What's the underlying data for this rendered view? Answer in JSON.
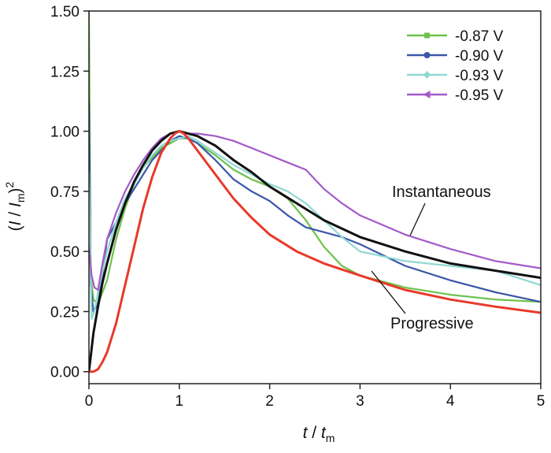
{
  "chart_data": {
    "type": "line",
    "xlabel": {
      "main": "t",
      "sep": " / ",
      "sub_main": "t",
      "sub": "m"
    },
    "ylabel": {
      "open": "(",
      "i": "I",
      "sep": " / ",
      "im": "I",
      "sub": "m",
      "close": ")",
      "sup": "2"
    },
    "xlim": [
      0,
      5
    ],
    "ylim": [
      -0.05,
      1.5
    ],
    "x_ticks": [
      0,
      1,
      2,
      3,
      4,
      5
    ],
    "x_tick_labels": [
      "0",
      "1",
      "2",
      "3",
      "4",
      "5"
    ],
    "y_ticks": [
      0,
      0.25,
      0.5,
      0.75,
      1.0,
      1.25,
      1.5
    ],
    "y_tick_labels": [
      "0.00",
      "0.25",
      "0.50",
      "0.75",
      "1.00",
      "1.25",
      "1.50"
    ],
    "grid": false,
    "legend_position": "top-right",
    "annotations": [
      {
        "text": "Instantaneous",
        "series": "instantaneous-theory"
      },
      {
        "text": "Progressive",
        "series": "progressive-theory"
      }
    ],
    "series": [
      {
        "name": "-0.87 V",
        "color": "#6cc24a",
        "marker": "square",
        "x": [
          0,
          0.02,
          0.05,
          0.1,
          0.2,
          0.3,
          0.4,
          0.5,
          0.6,
          0.7,
          0.8,
          0.9,
          1.0,
          1.1,
          1.2,
          1.4,
          1.6,
          1.8,
          2.0,
          2.2,
          2.4,
          2.6,
          2.8,
          3.0,
          3.5,
          4.0,
          4.5,
          5.0
        ],
        "y": [
          1.5,
          0.4,
          0.3,
          0.28,
          0.38,
          0.55,
          0.68,
          0.78,
          0.85,
          0.89,
          0.93,
          0.95,
          0.97,
          0.97,
          0.95,
          0.9,
          0.84,
          0.8,
          0.77,
          0.72,
          0.63,
          0.52,
          0.44,
          0.4,
          0.35,
          0.32,
          0.3,
          0.29
        ]
      },
      {
        "name": "-0.90 V",
        "color": "#3a57a8",
        "marker": "circle",
        "x": [
          0,
          0.02,
          0.05,
          0.1,
          0.15,
          0.2,
          0.3,
          0.4,
          0.5,
          0.6,
          0.7,
          0.8,
          0.9,
          1.0,
          1.1,
          1.2,
          1.4,
          1.6,
          1.8,
          2.0,
          2.2,
          2.4,
          2.6,
          2.8,
          3.0,
          3.5,
          4.0,
          4.5,
          5.0
        ],
        "y": [
          1.12,
          0.36,
          0.25,
          0.28,
          0.4,
          0.55,
          0.62,
          0.7,
          0.76,
          0.82,
          0.88,
          0.92,
          0.96,
          0.98,
          0.97,
          0.95,
          0.88,
          0.8,
          0.75,
          0.71,
          0.65,
          0.6,
          0.58,
          0.56,
          0.53,
          0.44,
          0.38,
          0.33,
          0.29
        ]
      },
      {
        "name": "-0.93 V",
        "color": "#8fd8d4",
        "marker": "diamond",
        "x": [
          0,
          0.03,
          0.06,
          0.1,
          0.2,
          0.3,
          0.4,
          0.5,
          0.6,
          0.7,
          0.8,
          0.9,
          1.0,
          1.1,
          1.2,
          1.4,
          1.6,
          1.8,
          2.0,
          2.2,
          2.4,
          2.6,
          2.8,
          3.0,
          3.5,
          4.0,
          4.5,
          5.0
        ],
        "y": [
          0.83,
          0.22,
          0.25,
          0.33,
          0.5,
          0.62,
          0.72,
          0.78,
          0.85,
          0.9,
          0.94,
          0.96,
          0.97,
          0.98,
          0.96,
          0.91,
          0.86,
          0.82,
          0.78,
          0.75,
          0.7,
          0.63,
          0.56,
          0.5,
          0.46,
          0.44,
          0.42,
          0.36
        ]
      },
      {
        "name": "-0.95 V",
        "color": "#a35ac8",
        "marker": "triangle-left",
        "x": [
          0,
          0.03,
          0.06,
          0.1,
          0.15,
          0.2,
          0.3,
          0.4,
          0.5,
          0.6,
          0.7,
          0.8,
          0.9,
          1.0,
          1.1,
          1.2,
          1.4,
          1.6,
          1.8,
          2.0,
          2.2,
          2.4,
          2.6,
          2.8,
          3.0,
          3.5,
          4.0,
          4.5,
          5.0
        ],
        "y": [
          0.52,
          0.4,
          0.35,
          0.34,
          0.45,
          0.55,
          0.66,
          0.75,
          0.82,
          0.88,
          0.93,
          0.97,
          0.99,
          1.0,
          0.99,
          0.99,
          0.98,
          0.96,
          0.93,
          0.9,
          0.87,
          0.84,
          0.76,
          0.7,
          0.65,
          0.57,
          0.51,
          0.46,
          0.43
        ]
      },
      {
        "name": "",
        "id": "instantaneous-theory",
        "color": "#111111",
        "marker": "none",
        "x": [
          0,
          0.05,
          0.1,
          0.15,
          0.2,
          0.3,
          0.4,
          0.5,
          0.6,
          0.7,
          0.8,
          0.9,
          1.0,
          1.1,
          1.2,
          1.4,
          1.6,
          1.8,
          2.0,
          2.3,
          2.6,
          3.0,
          3.5,
          4.0,
          4.5,
          5.0
        ],
        "y": [
          0,
          0.16,
          0.27,
          0.37,
          0.45,
          0.59,
          0.7,
          0.79,
          0.86,
          0.92,
          0.96,
          0.99,
          1.0,
          0.99,
          0.98,
          0.94,
          0.88,
          0.83,
          0.77,
          0.7,
          0.63,
          0.56,
          0.5,
          0.45,
          0.42,
          0.39
        ]
      },
      {
        "name": "",
        "id": "progressive-theory",
        "color": "#e8392a",
        "marker": "none",
        "x": [
          0,
          0.05,
          0.1,
          0.15,
          0.2,
          0.3,
          0.4,
          0.5,
          0.6,
          0.7,
          0.8,
          0.9,
          0.95,
          1.0,
          1.05,
          1.1,
          1.2,
          1.4,
          1.6,
          1.8,
          2.0,
          2.3,
          2.6,
          3.0,
          3.5,
          4.0,
          4.5,
          5.0
        ],
        "y": [
          0,
          0.0,
          0.01,
          0.04,
          0.08,
          0.2,
          0.36,
          0.52,
          0.68,
          0.81,
          0.91,
          0.97,
          0.99,
          1.0,
          0.99,
          0.97,
          0.92,
          0.82,
          0.72,
          0.64,
          0.57,
          0.5,
          0.45,
          0.4,
          0.34,
          0.3,
          0.27,
          0.245
        ]
      }
    ]
  }
}
